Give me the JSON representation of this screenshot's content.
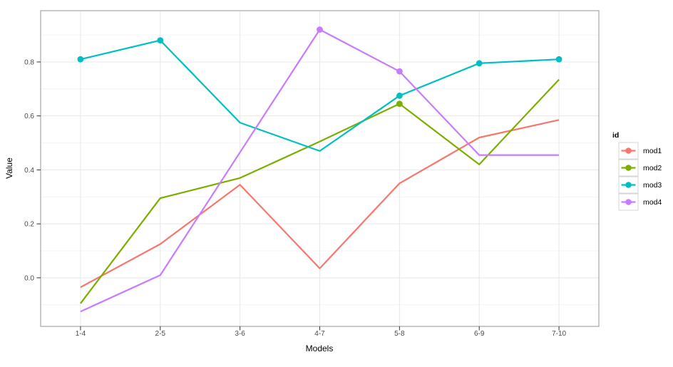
{
  "chart_data": {
    "type": "line",
    "title": "",
    "xlabel": "Models",
    "ylabel": "Value",
    "categories": [
      "1-4",
      "2-5",
      "3-6",
      "4-7",
      "5-8",
      "6-9",
      "7-10"
    ],
    "y_ticks": [
      0.0,
      0.2,
      0.4,
      0.6,
      0.8
    ],
    "y_minor_ticks": [
      -0.1,
      0.1,
      0.3,
      0.5,
      0.7,
      0.9
    ],
    "ylim": [
      -0.18,
      0.99
    ],
    "grid": true,
    "legend_title": "id",
    "legend_position": "right",
    "series": [
      {
        "name": "mod1",
        "color": "#F8766D",
        "values": [
          -0.035,
          0.125,
          0.345,
          0.035,
          0.35,
          0.52,
          0.585
        ],
        "markers": [
          false,
          false,
          false,
          false,
          false,
          false,
          false
        ]
      },
      {
        "name": "mod2",
        "color": "#7CAE00",
        "values": [
          -0.095,
          0.295,
          0.37,
          0.505,
          0.645,
          0.42,
          0.735
        ],
        "markers": [
          false,
          false,
          false,
          false,
          true,
          false,
          false
        ]
      },
      {
        "name": "mod3",
        "color": "#00BFC4",
        "values": [
          0.81,
          0.88,
          0.575,
          0.47,
          0.675,
          0.795,
          0.81
        ],
        "markers": [
          true,
          true,
          false,
          false,
          true,
          true,
          true
        ]
      },
      {
        "name": "mod4",
        "color": "#C77CFF",
        "values": [
          -0.125,
          0.01,
          0.465,
          0.92,
          0.765,
          0.455,
          0.455
        ],
        "markers": [
          false,
          false,
          false,
          true,
          true,
          false,
          false
        ]
      }
    ]
  },
  "style": {
    "panel_background": "#ffffff",
    "panel_border_color": "#a6a6a6",
    "grid_major_color": "#e8e8e8",
    "grid_minor_color": "#f4f4f4",
    "tick_mark_color": "#333333",
    "tick_label_color": "#4a4a4a",
    "legend_key_fill": "#ffffff",
    "legend_key_border": "#d6d6d6"
  }
}
